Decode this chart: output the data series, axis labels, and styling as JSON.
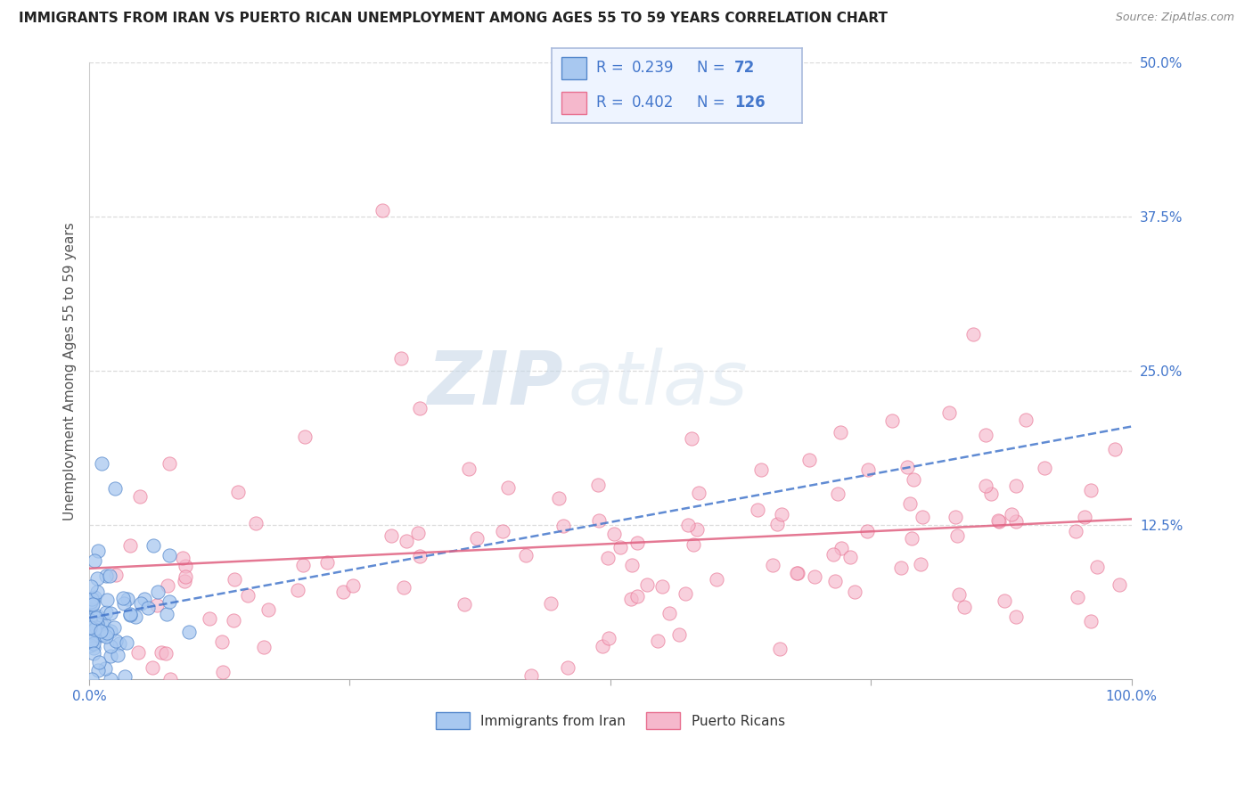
{
  "title": "IMMIGRANTS FROM IRAN VS PUERTO RICAN UNEMPLOYMENT AMONG AGES 55 TO 59 YEARS CORRELATION CHART",
  "source": "Source: ZipAtlas.com",
  "ylabel": "Unemployment Among Ages 55 to 59 years",
  "xlim": [
    0,
    1.0
  ],
  "ylim": [
    0,
    0.5
  ],
  "series1_color": "#a8c8f0",
  "series2_color": "#f5b8cc",
  "series1_edge": "#5588cc",
  "series2_edge": "#e87090",
  "trendline1_color": "#4477cc",
  "trendline2_color": "#e06080",
  "legend_box_color": "#eef4ff",
  "legend_box_edge": "#aabbdd",
  "R1": 0.239,
  "N1": 72,
  "R2": 0.402,
  "N2": 126,
  "watermark_text": "ZIPatlas",
  "watermark_color": "#d0dff0",
  "grid_color": "#cccccc",
  "title_color": "#222222",
  "axis_color": "#4477cc",
  "background_color": "#ffffff"
}
